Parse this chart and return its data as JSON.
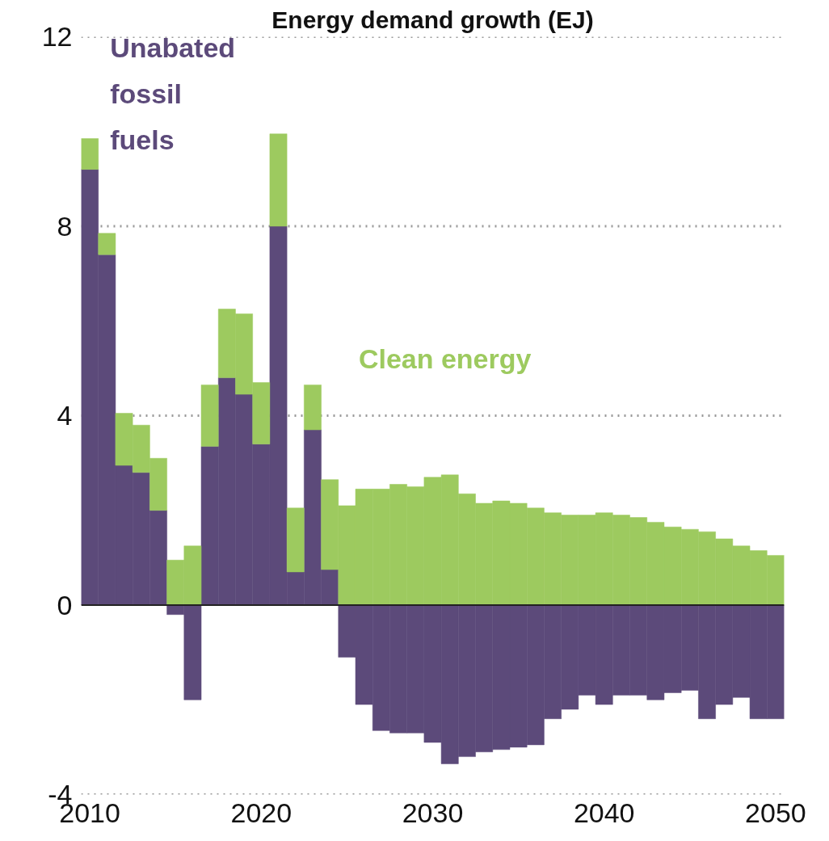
{
  "chart_data": {
    "type": "bar",
    "title": "Energy demand growth (EJ)",
    "stacked": true,
    "x": [
      2010,
      2011,
      2012,
      2013,
      2014,
      2015,
      2016,
      2017,
      2018,
      2019,
      2020,
      2021,
      2022,
      2023,
      2024,
      2025,
      2026,
      2027,
      2028,
      2029,
      2030,
      2031,
      2032,
      2033,
      2034,
      2035,
      2036,
      2037,
      2038,
      2039,
      2040,
      2041,
      2042,
      2043,
      2044,
      2045,
      2046,
      2047,
      2048,
      2049,
      2050
    ],
    "series": [
      {
        "name": "Unabated fossil fuels",
        "color": "#5c4a7a",
        "values": [
          9.2,
          7.4,
          2.95,
          2.8,
          2.0,
          -0.2,
          -2.0,
          3.35,
          4.8,
          4.45,
          3.4,
          8.0,
          0.7,
          3.7,
          0.75,
          -1.1,
          -2.1,
          -2.65,
          -2.7,
          -2.7,
          -2.9,
          -3.35,
          -3.2,
          -3.1,
          -3.05,
          -3.0,
          -2.95,
          -2.4,
          -2.2,
          -1.9,
          -2.1,
          -1.9,
          -1.9,
          -2.0,
          -1.85,
          -1.8,
          -2.4,
          -2.1,
          -1.95,
          -2.4,
          -2.4
        ]
      },
      {
        "name": "Clean energy",
        "color": "#9dca5f",
        "values": [
          0.65,
          0.45,
          1.1,
          1.0,
          1.1,
          0.95,
          1.25,
          1.3,
          1.45,
          1.7,
          1.3,
          1.95,
          1.35,
          0.95,
          1.9,
          2.1,
          2.45,
          2.45,
          2.55,
          2.5,
          2.7,
          2.75,
          2.35,
          2.15,
          2.2,
          2.15,
          2.05,
          1.95,
          1.9,
          1.9,
          1.95,
          1.9,
          1.85,
          1.75,
          1.65,
          1.6,
          1.55,
          1.4,
          1.25,
          1.15,
          1.05
        ]
      }
    ],
    "xlim": [
      2009.5,
      2050.5
    ],
    "xticks": [
      2010,
      2020,
      2030,
      2040,
      2050
    ],
    "ylim": [
      -4,
      12
    ],
    "yticks": [
      -4,
      0,
      4,
      8,
      12
    ],
    "grid": "y",
    "ref_lines": [
      {
        "axis": "y",
        "value": 0,
        "color": "#222222"
      }
    ]
  }
}
